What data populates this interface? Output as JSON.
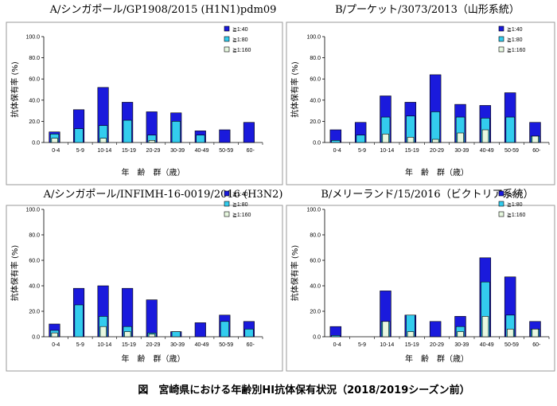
{
  "caption": "図　宮崎県における年齢別HI抗体保有状況（2018/2019シーズン前）",
  "colors": {
    "s1": "#1a1adc",
    "s2": "#33ccee",
    "s3": "#e8f8e0"
  },
  "chart_data": [
    {
      "type": "bar",
      "title": "A/シンガポール/GP1908/2015 (H1N1)pdm09",
      "ylabel": "抗体保有率 (%)",
      "xlabel": "年　齢　群（歳）",
      "categories": [
        "0-4",
        "5-9",
        "10-14",
        "15-19",
        "20-29",
        "30-39",
        "40-49",
        "50-59",
        "60-"
      ],
      "ylim": [
        0,
        100
      ],
      "yticks": [
        "0.0",
        "20.0",
        "40.0",
        "60.0",
        "80.0",
        "100.0"
      ],
      "legend_position": "right",
      "series": [
        {
          "name": "≧1:40",
          "values": [
            10,
            31,
            52,
            38,
            29,
            28,
            11,
            12,
            19
          ]
        },
        {
          "name": "≧1:80",
          "values": [
            8,
            13,
            16,
            21,
            7,
            20,
            7,
            0,
            0
          ]
        },
        {
          "name": "≧1:160",
          "values": [
            4,
            0,
            4,
            0,
            2,
            0,
            0,
            0,
            0
          ]
        }
      ]
    },
    {
      "type": "bar",
      "title": "B/プーケット/3073/2013（山形系統）",
      "ylabel": "抗体保有率 (%)",
      "xlabel": "年　齢　群（歳）",
      "categories": [
        "0-4",
        "5-9",
        "10-14",
        "15-19",
        "20-29",
        "30-39",
        "40-49",
        "50-59",
        "60-"
      ],
      "ylim": [
        0,
        100
      ],
      "yticks": [
        "0.0",
        "20.0",
        "40.0",
        "60.0",
        "80.0",
        "100.0"
      ],
      "legend_position": "right",
      "series": [
        {
          "name": "≧1:40",
          "values": [
            12,
            19,
            44,
            38,
            64,
            36,
            35,
            47,
            19
          ]
        },
        {
          "name": "≧1:80",
          "values": [
            2,
            7,
            24,
            25,
            29,
            24,
            23,
            24,
            6
          ]
        },
        {
          "name": "≧1:160",
          "values": [
            0,
            0,
            8,
            5,
            3,
            9,
            12,
            0,
            6
          ]
        }
      ]
    },
    {
      "type": "bar",
      "title": "A/シンガポール/INFIMH-16-0019/2016 (H3N2)",
      "ylabel": "抗体保有率 (%)",
      "xlabel": "年　齢　群（歳）",
      "categories": [
        "0-4",
        "5-9",
        "10-14",
        "15-19",
        "20-29",
        "30-39",
        "40-49",
        "50-59",
        "60-"
      ],
      "ylim": [
        0,
        100
      ],
      "yticks": [
        "0.0",
        "20.0",
        "40.0",
        "60.0",
        "80.0",
        "100.0"
      ],
      "legend_position": "right",
      "series": [
        {
          "name": "≧1:40",
          "values": [
            10,
            38,
            40,
            38,
            29,
            4,
            11,
            17,
            12
          ]
        },
        {
          "name": "≧1:80",
          "values": [
            5,
            25,
            16,
            8,
            3,
            4,
            0,
            12,
            6
          ]
        },
        {
          "name": "≧1:160",
          "values": [
            3,
            0,
            8,
            4,
            2,
            0,
            0,
            0,
            0
          ]
        }
      ]
    },
    {
      "type": "bar",
      "title": "B/メリーランド/15/2016（ビクトリア系統）",
      "ylabel": "抗体保有率 (%)",
      "xlabel": "年　齢　群（歳）",
      "categories": [
        "0-4",
        "5-9",
        "10-14",
        "15-19",
        "20-29",
        "30-39",
        "40-49",
        "50-59",
        "60-"
      ],
      "ylim": [
        0,
        100
      ],
      "yticks": [
        "0.0",
        "20.0",
        "40.0",
        "60.0",
        "80.0",
        "100.0"
      ],
      "legend_position": "right",
      "series": [
        {
          "name": "≧1:40",
          "values": [
            8,
            0,
            36,
            17,
            12,
            16,
            62,
            47,
            12
          ]
        },
        {
          "name": "≧1:80",
          "values": [
            1,
            0,
            12,
            17,
            0,
            8,
            43,
            17,
            6
          ]
        },
        {
          "name": "≧1:160",
          "values": [
            0,
            0,
            12,
            4,
            0,
            4,
            16,
            6,
            6
          ]
        }
      ]
    }
  ]
}
